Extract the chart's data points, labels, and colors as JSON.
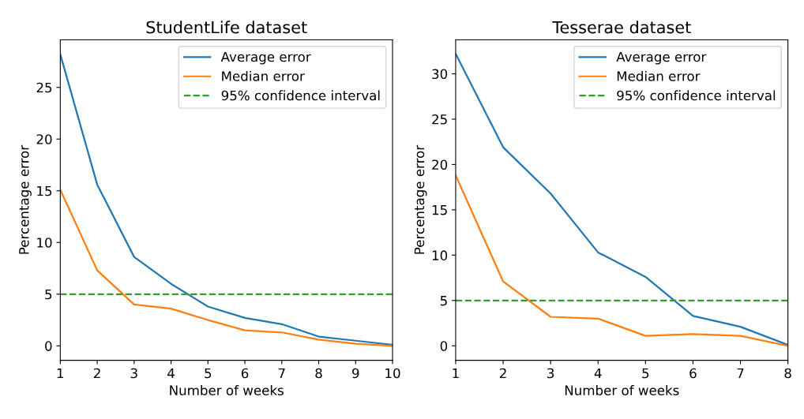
{
  "chart_data": [
    {
      "type": "line",
      "title": "StudentLife dataset",
      "xlabel": "Number of weeks",
      "ylabel": "Percentage error",
      "x": [
        1,
        2,
        3,
        4,
        5,
        6,
        7,
        8,
        9,
        10
      ],
      "series": [
        {
          "name": "Average error",
          "color": "#1f77b4",
          "values": [
            28.2,
            15.6,
            8.6,
            6.0,
            3.8,
            2.7,
            2.1,
            0.9,
            0.5,
            0.1
          ]
        },
        {
          "name": "Median error",
          "color": "#ff7f0e",
          "values": [
            15.1,
            7.3,
            4.0,
            3.6,
            2.5,
            1.5,
            1.3,
            0.6,
            0.2,
            0.0
          ]
        },
        {
          "name": "95% confidence interval",
          "color": "#2ca02c",
          "line_style": "dashed",
          "x": [
            1,
            10
          ],
          "values": [
            5,
            5
          ]
        }
      ],
      "xlim": [
        1,
        10
      ],
      "xticks": [
        1,
        2,
        3,
        4,
        5,
        6,
        7,
        8,
        9,
        10
      ],
      "ylim": [
        -1.4,
        29.6
      ],
      "yticks": [
        0,
        5,
        10,
        15,
        20,
        25
      ],
      "legend": "top right",
      "grid": false
    },
    {
      "type": "line",
      "title": "Tesserae dataset",
      "xlabel": "Number of weeks",
      "ylabel": "Percentage error",
      "x": [
        1,
        2,
        3,
        4,
        5,
        6,
        7,
        8
      ],
      "series": [
        {
          "name": "Average error",
          "color": "#1f77b4",
          "values": [
            32.2,
            21.9,
            16.8,
            10.3,
            7.6,
            3.3,
            2.1,
            0.1
          ]
        },
        {
          "name": "Median error",
          "color": "#ff7f0e",
          "values": [
            18.8,
            7.1,
            3.2,
            3.0,
            1.1,
            1.3,
            1.1,
            0.0
          ]
        },
        {
          "name": "95% confidence interval",
          "color": "#2ca02c",
          "line_style": "dashed",
          "x": [
            1,
            8
          ],
          "values": [
            5,
            5
          ]
        }
      ],
      "xlim": [
        1,
        8
      ],
      "xticks": [
        1,
        2,
        3,
        4,
        5,
        6,
        7,
        8
      ],
      "ylim": [
        -1.6,
        33.75
      ],
      "yticks": [
        0,
        5,
        10,
        15,
        20,
        25,
        30
      ],
      "legend": "top right",
      "grid": false
    }
  ]
}
